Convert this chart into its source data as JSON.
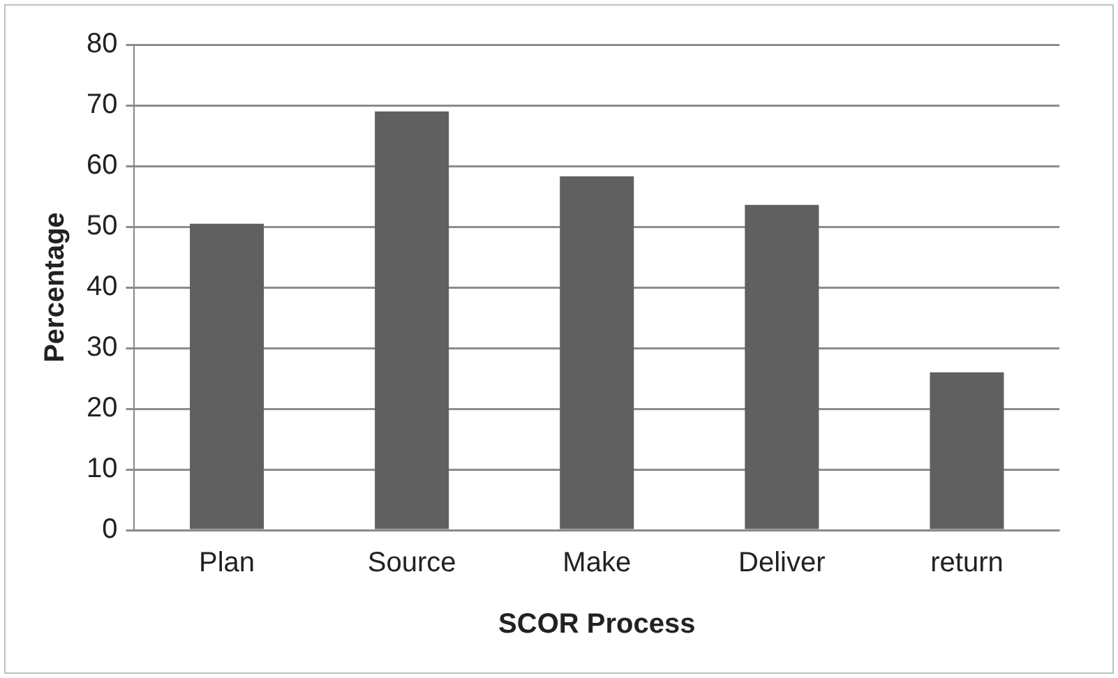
{
  "chart_data": {
    "type": "bar",
    "xlabel": "SCOR Process",
    "ylabel": "Percentage",
    "categories": [
      "Plan",
      "Source",
      "Make",
      "Deliver",
      "return"
    ],
    "values": [
      50.5,
      69,
      58.3,
      53.6,
      26
    ],
    "color": "#606060",
    "ylim": [
      0,
      80
    ],
    "yticks": [
      0,
      10,
      20,
      30,
      40,
      50,
      60,
      70,
      80
    ],
    "grid": "y",
    "legend": false
  }
}
